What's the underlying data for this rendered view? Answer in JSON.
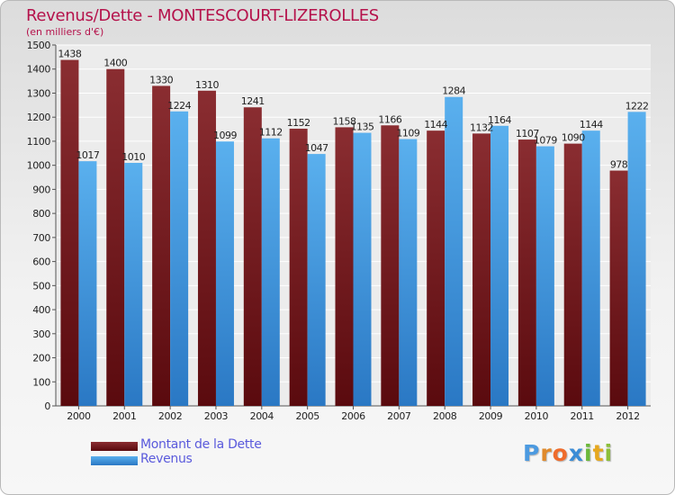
{
  "header": {
    "title": "Revenus/Dette - MONTESCOURT-LIZEROLLES",
    "subtitle": "(en milliers d'€)"
  },
  "legend": {
    "items": [
      {
        "label": "Montant de la Dette",
        "color": "#7a1e22"
      },
      {
        "label": "Revenus",
        "color": "#4ea6e8"
      }
    ]
  },
  "logo": {
    "text": "Proxiti",
    "letters": [
      {
        "char": "P",
        "color": "#4c9ae0"
      },
      {
        "char": "r",
        "color": "#e08a2c"
      },
      {
        "char": "o",
        "color": "#ef6c2c"
      },
      {
        "char": "x",
        "color": "#3a8cd6"
      },
      {
        "char": "i",
        "color": "#6cb83a"
      },
      {
        "char": "t",
        "color": "#e6a81e"
      },
      {
        "char": "i",
        "color": "#8cbf3a"
      }
    ]
  },
  "chart_data": {
    "type": "bar",
    "categories": [
      "2000",
      "2001",
      "2002",
      "2003",
      "2004",
      "2005",
      "2006",
      "2007",
      "2008",
      "2009",
      "2010",
      "2011",
      "2012"
    ],
    "series": [
      {
        "name": "Montant de la Dette",
        "color": "#7a1e22",
        "values": [
          1438,
          1400,
          1330,
          1310,
          1241,
          1152,
          1158,
          1166,
          1144,
          1132,
          1107,
          1090,
          978
        ]
      },
      {
        "name": "Revenus",
        "color": "#4ea6e8",
        "values": [
          1017,
          1010,
          1224,
          1099,
          1112,
          1047,
          1135,
          1109,
          1284,
          1164,
          1079,
          1144,
          1222
        ]
      }
    ],
    "ylim": [
      0,
      1500
    ],
    "yticks": [
      "0",
      "100",
      "200",
      "300",
      "400",
      "500",
      "600",
      "700",
      "800",
      "900",
      "1000",
      "1100",
      "1200",
      "1300",
      "1400",
      "1500"
    ],
    "grid": true,
    "legend_position": "bottom-left"
  }
}
